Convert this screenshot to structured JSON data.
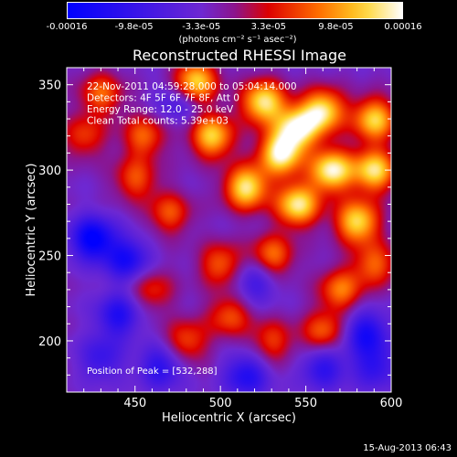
{
  "colorbar": {
    "ticks": [
      "-0.00016",
      "-9.8e-05",
      "-3.3e-05",
      "3.3e-05",
      "9.8e-05",
      "0.00016"
    ],
    "units_label": "(photons cm⁻² s⁻¹ asec⁻²)"
  },
  "plot": {
    "title": "Reconstructed RHESSI Image",
    "info_lines": [
      "22-Nov-2011 04:59:28.000 to 05:04:14.000",
      "Detectors: 4F 5F 6F 7F 8F, Att 0",
      "Energy Range: 12.0 - 25.0 keV",
      "Clean    Total counts: 5.39e+03"
    ],
    "peak_label": "Position of Peak = [532,288]"
  },
  "timestamp": "15-Aug-2013 06:43",
  "chart_data": {
    "type": "heatmap",
    "title": "Reconstructed RHESSI Image",
    "xlabel": "Heliocentric X (arcsec)",
    "ylabel": "Heliocentric Y (arcsec)",
    "xlim": [
      410,
      600
    ],
    "ylim": [
      170,
      360
    ],
    "xticks": [
      450,
      500,
      550,
      600
    ],
    "yticks": [
      200,
      250,
      300,
      350
    ],
    "colorscale_range": [
      -0.00016,
      0.00016
    ],
    "peak_position": [
      532,
      288
    ],
    "bright_regions_arcsec": [
      [
        485,
        352,
        0.9
      ],
      [
        525,
        340,
        0.95
      ],
      [
        560,
        335,
        0.9
      ],
      [
        590,
        330,
        0.85
      ],
      [
        535,
        310,
        1.0
      ],
      [
        565,
        300,
        1.0
      ],
      [
        590,
        300,
        0.9
      ],
      [
        515,
        290,
        0.95
      ],
      [
        545,
        280,
        0.95
      ],
      [
        580,
        270,
        0.9
      ],
      [
        495,
        320,
        0.85
      ],
      [
        455,
        320,
        0.55
      ],
      [
        430,
        345,
        0.55
      ],
      [
        470,
        275,
        0.5
      ],
      [
        450,
        295,
        0.5
      ],
      [
        530,
        250,
        0.6
      ],
      [
        570,
        230,
        0.6
      ],
      [
        560,
        205,
        0.55
      ],
      [
        500,
        245,
        0.55
      ],
      [
        505,
        215,
        0.5
      ],
      [
        480,
        200,
        0.5
      ],
      [
        530,
        200,
        0.45
      ],
      [
        460,
        230,
        0.4
      ],
      [
        420,
        320,
        0.45
      ],
      [
        590,
        245,
        0.55
      ],
      [
        545,
        325,
        0.9
      ]
    ],
    "dark_regions_arcsec": [
      [
        425,
        260,
        -0.8
      ],
      [
        445,
        248,
        -0.6
      ],
      [
        440,
        215,
        -0.55
      ],
      [
        465,
        185,
        -0.5
      ],
      [
        515,
        180,
        -0.55
      ],
      [
        585,
        205,
        -0.6
      ],
      [
        560,
        185,
        -0.5
      ],
      [
        430,
        190,
        -0.4
      ],
      [
        475,
        340,
        -0.35
      ],
      [
        520,
        235,
        -0.4
      ],
      [
        590,
        185,
        -0.45
      ]
    ]
  }
}
